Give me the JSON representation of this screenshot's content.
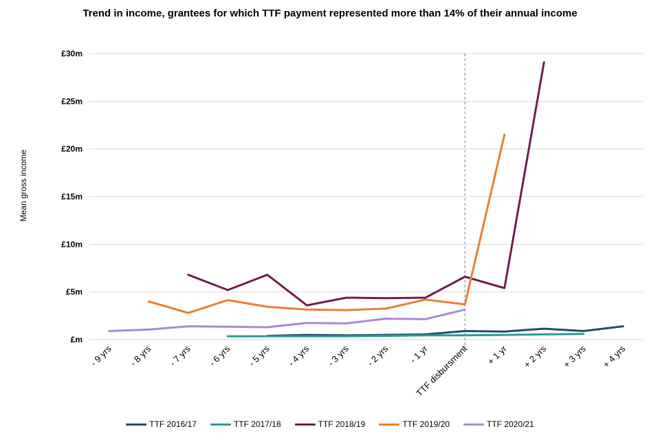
{
  "chart_data": {
    "type": "line",
    "title": "Trend in income,  grantees for which TTF payment represented more than 14% of their annual income",
    "ylabel": "Mean gross income",
    "xlabel": "",
    "ylim": [
      0,
      30
    ],
    "yticks": [
      {
        "value": 0,
        "label": "£m"
      },
      {
        "value": 5,
        "label": "£5m"
      },
      {
        "value": 10,
        "label": "£10m"
      },
      {
        "value": 15,
        "label": "£15m"
      },
      {
        "value": 20,
        "label": "£20m"
      },
      {
        "value": 25,
        "label": "£25m"
      },
      {
        "value": 30,
        "label": "£30m"
      }
    ],
    "categories": [
      "- 9 yrs",
      "- 8 yrs",
      "- 7 yrs",
      "- 6 yrs",
      "- 5 yrs",
      "- 4 yrs",
      "- 3 yrs",
      "- 2 yrs",
      "- 1 yr",
      "TTF disbursment",
      "+ 1 yr",
      "+ 2 yrs",
      "+ 3 yrs",
      "+ 4 yrs"
    ],
    "reference_line_category": "TTF disbursment",
    "grid": true,
    "legend_position": "bottom",
    "series": [
      {
        "name": "TTF 2016/17",
        "color": "#1b4f6b",
        "values": [
          null,
          null,
          null,
          null,
          0.4,
          0.5,
          0.45,
          0.5,
          0.55,
          0.9,
          0.85,
          1.15,
          0.9,
          1.4
        ]
      },
      {
        "name": "TTF 2017/18",
        "color": "#2a9d8f",
        "values": [
          null,
          null,
          null,
          0.35,
          0.35,
          0.35,
          0.35,
          0.4,
          0.45,
          0.45,
          0.5,
          0.55,
          0.6,
          null
        ]
      },
      {
        "name": "TTF 2018/19",
        "color": "#6f1d4e",
        "values": [
          null,
          null,
          6.8,
          5.2,
          6.8,
          3.6,
          4.4,
          4.35,
          4.4,
          6.6,
          5.4,
          29.1,
          null,
          null
        ]
      },
      {
        "name": "TTF 2019/20",
        "color": "#ed7d31",
        "values": [
          null,
          4.0,
          2.8,
          4.15,
          3.45,
          3.15,
          3.1,
          3.25,
          4.2,
          3.7,
          21.5,
          null,
          null,
          null
        ]
      },
      {
        "name": "TTF 2020/21",
        "color": "#a98ad6",
        "values": [
          0.9,
          1.05,
          1.4,
          1.35,
          1.3,
          1.75,
          1.7,
          2.2,
          2.15,
          3.15,
          null,
          null,
          null,
          null
        ]
      }
    ]
  }
}
